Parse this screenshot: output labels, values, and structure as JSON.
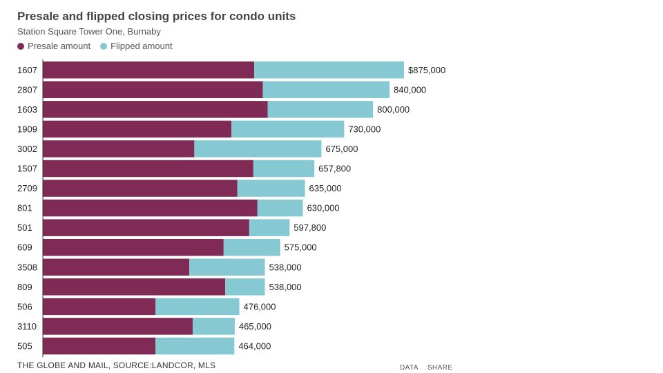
{
  "header": {
    "title": "Presale and flipped closing prices for condo units",
    "subtitle": "Station Square Tower One, Burnaby"
  },
  "legend": {
    "presale_label": "Presale amount",
    "flipped_label": "Flipped amount"
  },
  "colors": {
    "presale": "#802a56",
    "flipped": "#86c9d2"
  },
  "footer": {
    "source": "THE GLOBE AND MAIL, SOURCE:LANDCOR, MLS",
    "data_link": "DATA",
    "share_link": "SHARE"
  },
  "chart_data": {
    "type": "bar",
    "orientation": "horizontal",
    "stacked": true,
    "title": "Presale and flipped closing prices for condo units",
    "subtitle": "Station Square Tower One, Burnaby",
    "categories": [
      "1607",
      "2807",
      "1603",
      "1909",
      "3002",
      "1507",
      "2709",
      "801",
      "501",
      "609",
      "3508",
      "809",
      "506",
      "3110",
      "505"
    ],
    "series": [
      {
        "name": "Presale amount",
        "values": [
          512000,
          533000,
          545000,
          457000,
          367000,
          510000,
          471000,
          520000,
          500000,
          438000,
          355000,
          442000,
          273000,
          363000,
          273000
        ]
      },
      {
        "name": "Flipped amount",
        "values": [
          363000,
          307000,
          255000,
          273000,
          308000,
          147800,
          164000,
          110000,
          97800,
          137000,
          183000,
          96000,
          203000,
          102000,
          191000
        ]
      }
    ],
    "totals": [
      875000,
      840000,
      800000,
      730000,
      675000,
      657800,
      635000,
      630000,
      597800,
      575000,
      538000,
      538000,
      476000,
      465000,
      464000
    ],
    "total_labels": [
      "$875,000",
      "840,000",
      "800,000",
      "730,000",
      "675,000",
      "657,800",
      "635,000",
      "630,000",
      "597,800",
      "575,000",
      "538,000",
      "538,000",
      "476,000",
      "465,000",
      "464,000"
    ],
    "xlim": [
      0,
      875000
    ],
    "grid": false,
    "legend_position": "top-left"
  }
}
